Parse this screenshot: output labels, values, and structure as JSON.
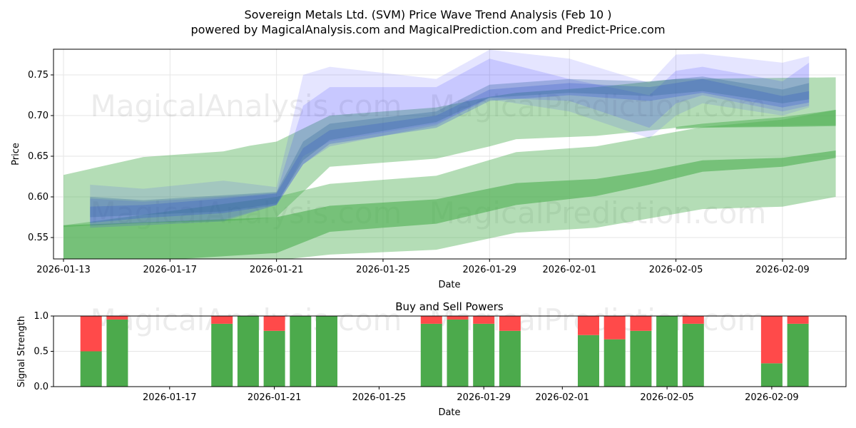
{
  "chart_data": [
    {
      "type": "area",
      "title": "Sovereign Metals Ltd. (SVM) Price Wave Trend Analysis (Feb 10 )",
      "subtitle": "powered by MagicalAnalysis.com and MagicalPrediction.com and Predict-Price.com",
      "xlabel": "Date",
      "ylabel": "Price",
      "ylim": [
        0.522,
        0.781
      ],
      "yticks": [
        "0.55",
        "0.60",
        "0.65",
        "0.70",
        "0.75"
      ],
      "xticks": [
        "2026-01-13",
        "2026-01-17",
        "2026-01-21",
        "2026-01-25",
        "2026-01-29",
        "2026-02-01",
        "2026-02-05",
        "2026-02-09"
      ],
      "grid": true,
      "watermarks": [
        "MagicalAnalysis.com",
        "MagicalPrediction.com"
      ],
      "bands": [
        {
          "name": "green-light-upper",
          "color": "#4caf50",
          "opacity": 0.42,
          "points": [
            [
              "2026-01-13",
              0.563,
              0.627
            ],
            [
              "2026-01-16",
              0.568,
              0.649
            ],
            [
              "2026-01-19",
              0.57,
              0.656
            ],
            [
              "2026-01-20",
              0.572,
              0.663
            ],
            [
              "2026-01-21",
              0.575,
              0.668
            ],
            [
              "2026-01-23",
              0.637,
              0.7
            ],
            [
              "2026-01-27",
              0.647,
              0.71
            ],
            [
              "2026-01-29",
              0.662,
              0.723
            ],
            [
              "2026-01-30",
              0.671,
              0.728
            ],
            [
              "2026-02-02",
              0.675,
              0.735
            ],
            [
              "2026-02-05",
              0.685,
              0.745
            ],
            [
              "2026-02-11",
              0.688,
              0.747
            ]
          ]
        },
        {
          "name": "green-light-lower",
          "color": "#4caf50",
          "opacity": 0.42,
          "points": [
            [
              "2026-01-13",
              0.505,
              0.565
            ],
            [
              "2026-01-21",
              0.522,
              0.6
            ],
            [
              "2026-01-23",
              0.529,
              0.616
            ],
            [
              "2026-01-27",
              0.535,
              0.626
            ],
            [
              "2026-01-30",
              0.556,
              0.655
            ],
            [
              "2026-02-02",
              0.562,
              0.662
            ],
            [
              "2026-02-06",
              0.585,
              0.686
            ],
            [
              "2026-02-09",
              0.588,
              0.695
            ],
            [
              "2026-02-11",
              0.6,
              0.707
            ]
          ]
        },
        {
          "name": "green-dark-lower",
          "color": "#4caf50",
          "opacity": 0.6,
          "points": [
            [
              "2026-01-13",
              0.515,
              0.565
            ],
            [
              "2026-01-21",
              0.531,
              0.575
            ],
            [
              "2026-01-23",
              0.557,
              0.589
            ],
            [
              "2026-01-27",
              0.567,
              0.597
            ],
            [
              "2026-01-30",
              0.59,
              0.617
            ],
            [
              "2026-02-02",
              0.601,
              0.622
            ],
            [
              "2026-02-04",
              0.615,
              0.632
            ],
            [
              "2026-02-06",
              0.631,
              0.645
            ],
            [
              "2026-02-09",
              0.637,
              0.648
            ],
            [
              "2026-02-11",
              0.648,
              0.657
            ]
          ]
        },
        {
          "name": "green-dark-upper",
          "color": "#4caf50",
          "opacity": 0.5,
          "points": [
            [
              "2026-02-05",
              0.683,
              0.686
            ],
            [
              "2026-02-06",
              0.685,
              0.69
            ],
            [
              "2026-02-09",
              0.686,
              0.698
            ],
            [
              "2026-02-11",
              0.687,
              0.707
            ]
          ]
        },
        {
          "name": "blue-wide",
          "color": "#3333ff",
          "opacity": 0.13,
          "points": [
            [
              "2026-01-14",
              0.565,
              0.615
            ],
            [
              "2026-01-16",
              0.568,
              0.61
            ],
            [
              "2026-01-19",
              0.572,
              0.62
            ],
            [
              "2026-01-21",
              0.59,
              0.612
            ],
            [
              "2026-01-22",
              0.65,
              0.75
            ],
            [
              "2026-01-23",
              0.668,
              0.76
            ],
            [
              "2026-01-27",
              0.69,
              0.745
            ],
            [
              "2026-01-29",
              0.72,
              0.781
            ],
            [
              "2026-02-01",
              0.705,
              0.77
            ],
            [
              "2026-02-04",
              0.672,
              0.74
            ],
            [
              "2026-02-05",
              0.7,
              0.775
            ],
            [
              "2026-02-06",
              0.715,
              0.776
            ],
            [
              "2026-02-09",
              0.7,
              0.765
            ],
            [
              "2026-02-10",
              0.71,
              0.773
            ]
          ]
        },
        {
          "name": "blue-mid",
          "color": "#3333ff",
          "opacity": 0.16,
          "points": [
            [
              "2026-01-14",
              0.562,
              0.598
            ],
            [
              "2026-01-16",
              0.565,
              0.594
            ],
            [
              "2026-01-19",
              0.57,
              0.6
            ],
            [
              "2026-01-21",
              0.59,
              0.605
            ],
            [
              "2026-01-22",
              0.64,
              0.712
            ],
            [
              "2026-01-23",
              0.662,
              0.735
            ],
            [
              "2026-01-27",
              0.688,
              0.735
            ],
            [
              "2026-01-29",
              0.722,
              0.77
            ],
            [
              "2026-02-01",
              0.718,
              0.745
            ],
            [
              "2026-02-04",
              0.685,
              0.725
            ],
            [
              "2026-02-05",
              0.715,
              0.755
            ],
            [
              "2026-02-06",
              0.725,
              0.76
            ],
            [
              "2026-02-09",
              0.705,
              0.742
            ],
            [
              "2026-02-10",
              0.712,
              0.765
            ]
          ]
        },
        {
          "name": "blue-core",
          "color": "#2244dd",
          "opacity": 0.25,
          "points": [
            [
              "2026-01-14",
              0.568,
              0.588
            ],
            [
              "2026-01-16",
              0.574,
              0.59
            ],
            [
              "2026-01-19",
              0.58,
              0.598
            ],
            [
              "2026-01-21",
              0.59,
              0.604
            ],
            [
              "2026-01-22",
              0.64,
              0.66
            ],
            [
              "2026-01-23",
              0.665,
              0.682
            ],
            [
              "2026-01-27",
              0.685,
              0.7
            ],
            [
              "2026-01-29",
              0.718,
              0.732
            ],
            [
              "2026-02-01",
              0.725,
              0.74
            ],
            [
              "2026-02-04",
              0.718,
              0.735
            ],
            [
              "2026-02-06",
              0.728,
              0.745
            ],
            [
              "2026-02-09",
              0.71,
              0.724
            ],
            [
              "2026-02-10",
              0.716,
              0.73
            ]
          ]
        },
        {
          "name": "blue-steel",
          "color": "#336699",
          "opacity": 0.3,
          "points": [
            [
              "2026-01-14",
              0.575,
              0.6
            ],
            [
              "2026-01-16",
              0.578,
              0.596
            ],
            [
              "2026-01-19",
              0.582,
              0.602
            ],
            [
              "2026-01-21",
              0.592,
              0.606
            ],
            [
              "2026-01-22",
              0.645,
              0.668
            ],
            [
              "2026-01-23",
              0.67,
              0.69
            ],
            [
              "2026-01-27",
              0.692,
              0.705
            ],
            [
              "2026-01-29",
              0.722,
              0.738
            ],
            [
              "2026-02-01",
              0.728,
              0.745
            ],
            [
              "2026-02-04",
              0.724,
              0.742
            ],
            [
              "2026-02-06",
              0.73,
              0.748
            ],
            [
              "2026-02-09",
              0.715,
              0.732
            ],
            [
              "2026-02-10",
              0.72,
              0.74
            ]
          ]
        }
      ]
    },
    {
      "type": "bar",
      "title": "Buy and Sell Powers",
      "xlabel": "Date",
      "ylabel": "Signal Strength",
      "ylim": [
        0,
        1.0
      ],
      "yticks": [
        "0.0",
        "0.5",
        "1.0"
      ],
      "xticks": [
        "2026-01-17",
        "2026-01-21",
        "2026-01-25",
        "2026-01-29",
        "2026-02-01",
        "2026-02-05",
        "2026-02-09"
      ],
      "buy_color": "#4caa4c",
      "sell_color": "#ff4a4a",
      "categories": [
        "2026-01-14",
        "2026-01-15",
        "2026-01-19",
        "2026-01-20",
        "2026-01-21",
        "2026-01-22",
        "2026-01-23",
        "2026-01-27",
        "2026-01-28",
        "2026-01-29",
        "2026-01-30",
        "2026-02-02",
        "2026-02-03",
        "2026-02-04",
        "2026-02-05",
        "2026-02-06",
        "2026-02-09",
        "2026-02-10"
      ],
      "buy": [
        0.5,
        0.95,
        0.89,
        1.0,
        0.79,
        1.0,
        1.0,
        0.89,
        0.95,
        0.89,
        0.79,
        0.73,
        0.67,
        0.79,
        1.0,
        0.89,
        0.33,
        0.89
      ]
    }
  ]
}
